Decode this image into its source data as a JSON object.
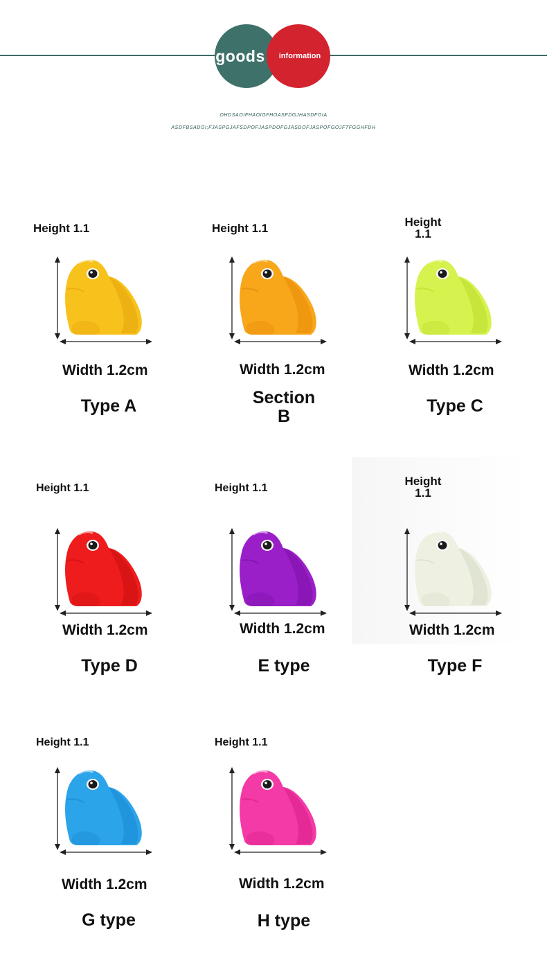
{
  "header": {
    "left_word": "goods",
    "right_word": "information",
    "line1": "OHDSAOIFHAOIGFHOASFDGJHASDFOIA",
    "line2": "ASDFBSADOI;FJASPGJAFSDPOFJASPDOFGJASDOFJASPOFGOJFTFGGHFDH",
    "colors": {
      "line": "#3f6b6a",
      "green": "#3e7169",
      "red": "#d3232f"
    }
  },
  "items": [
    {
      "height": "Height 1.1",
      "width": "Width 1.2cm",
      "type": "Type A",
      "color": "#f7c21c",
      "shade": "#e8a40c"
    },
    {
      "height": "Height 1.1",
      "width": "Width 1.2cm",
      "type": "Section B",
      "color": "#f8a61a",
      "shade": "#e58a08"
    },
    {
      "height": "Height 1.1",
      "width": "Width 1.2cm",
      "type": "Type C",
      "color": "#d6f24e",
      "shade": "#b9dc2c"
    },
    {
      "height": "Height 1.1",
      "width": "Width 1.2cm",
      "type": "Type D",
      "color": "#ee1c1c",
      "shade": "#c80f10"
    },
    {
      "height": "Height 1.1",
      "width": "Width 1.2cm",
      "type": "E type",
      "color": "#9b1fc8",
      "shade": "#7a0fa6"
    },
    {
      "height": "Height 1.1",
      "width": "Width 1.2cm",
      "type": "Type F",
      "color": "#eef0e2",
      "shade": "#d6dac6"
    },
    {
      "height": "Height 1.1",
      "width": "Width 1.2cm",
      "type": "G type",
      "color": "#2ba4ea",
      "shade": "#1786cf"
    },
    {
      "height": "Height 1.1",
      "width": "Width 1.2cm",
      "type": "H type",
      "color": "#f43aa6",
      "shade": "#d81d88"
    }
  ]
}
